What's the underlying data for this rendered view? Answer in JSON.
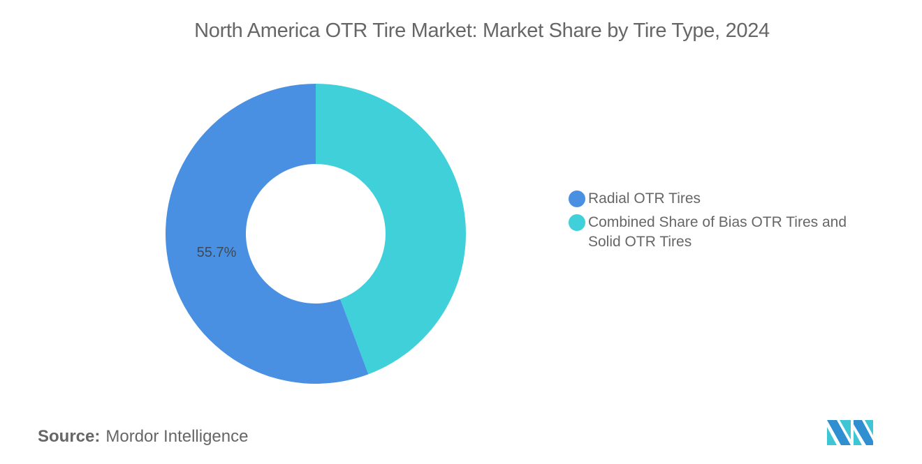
{
  "title": "North America OTR Tire Market: Market Share by Tire Type, 2024",
  "chart_data": {
    "type": "pie",
    "subtype": "donut",
    "title": "North America OTR Tire Market: Market Share by Tire Type, 2024",
    "categories": [
      "Radial OTR Tires",
      "Combined Share of Bias OTR Tires and Solid OTR Tires"
    ],
    "values": [
      55.7,
      44.3
    ],
    "colors": [
      "#4a90e2",
      "#3fd0d9"
    ],
    "data_labels": [
      "55.7%",
      ""
    ],
    "legend_position": "right"
  },
  "legend": {
    "items": [
      {
        "label": "Radial OTR Tires",
        "color": "#4a90e2"
      },
      {
        "label": "Combined Share of Bias OTR Tires and Solid OTR Tires",
        "color": "#3fd0d9"
      }
    ]
  },
  "labels": {
    "radial": "55.7%"
  },
  "source": {
    "prefix": "Source:",
    "name": "Mordor Intelligence"
  }
}
